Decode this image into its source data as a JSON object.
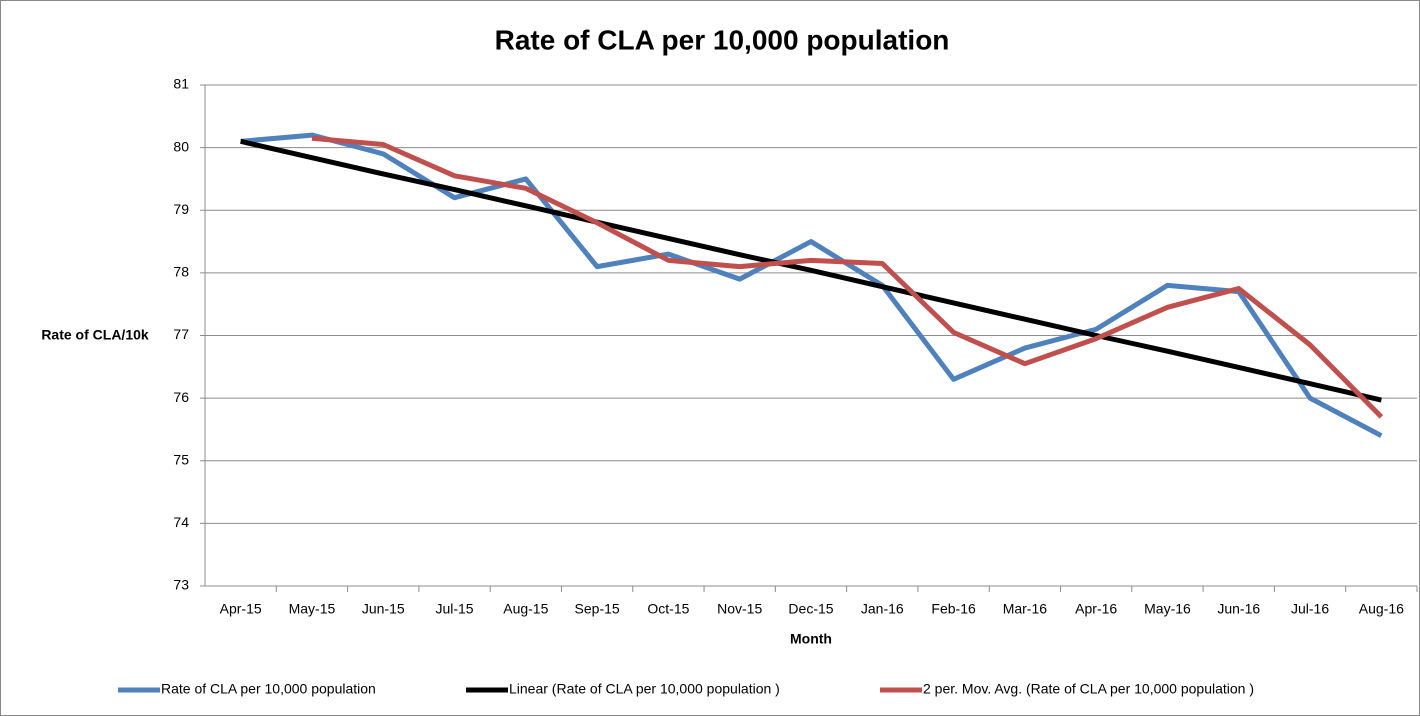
{
  "chart_data": {
    "type": "line",
    "title": "Rate of CLA per 10,000 population",
    "x_label": "Month",
    "y_label": "Rate of CLA/10k",
    "categories": [
      "Apr-15",
      "May-15",
      "Jun-15",
      "Jul-15",
      "Aug-15",
      "Sep-15",
      "Oct-15",
      "Nov-15",
      "Dec-15",
      "Jan-16",
      "Feb-16",
      "Mar-16",
      "Apr-16",
      "May-16",
      "Jun-16",
      "Jul-16",
      "Aug-16"
    ],
    "series": [
      {
        "name": "Rate of CLA per 10,000 population",
        "color": "#4f81bd",
        "values": [
          80.1,
          80.2,
          79.9,
          79.2,
          79.5,
          78.1,
          78.3,
          77.9,
          78.5,
          77.8,
          76.3,
          76.8,
          77.1,
          77.8,
          77.7,
          76.0,
          75.4
        ]
      },
      {
        "name": "Linear (Rate of CLA per 10,000 population )",
        "color": "#000000",
        "values": [
          80.1,
          79.84,
          79.58,
          79.33,
          79.07,
          78.81,
          78.55,
          78.29,
          78.04,
          77.78,
          77.52,
          77.26,
          77.0,
          76.75,
          76.49,
          76.23,
          75.97
        ]
      },
      {
        "name": "2 per. Mov. Avg. (Rate of CLA per 10,000 population )",
        "color": "#c0504d",
        "values": [
          null,
          80.15,
          80.05,
          79.55,
          79.35,
          78.8,
          78.2,
          78.1,
          78.2,
          78.15,
          77.05,
          76.55,
          76.95,
          77.45,
          77.75,
          76.85,
          75.7
        ]
      }
    ],
    "ylim": [
      73,
      81
    ],
    "yticks": [
      73,
      74,
      75,
      76,
      77,
      78,
      79,
      80,
      81
    ],
    "grid": true,
    "legend": "bottom"
  }
}
